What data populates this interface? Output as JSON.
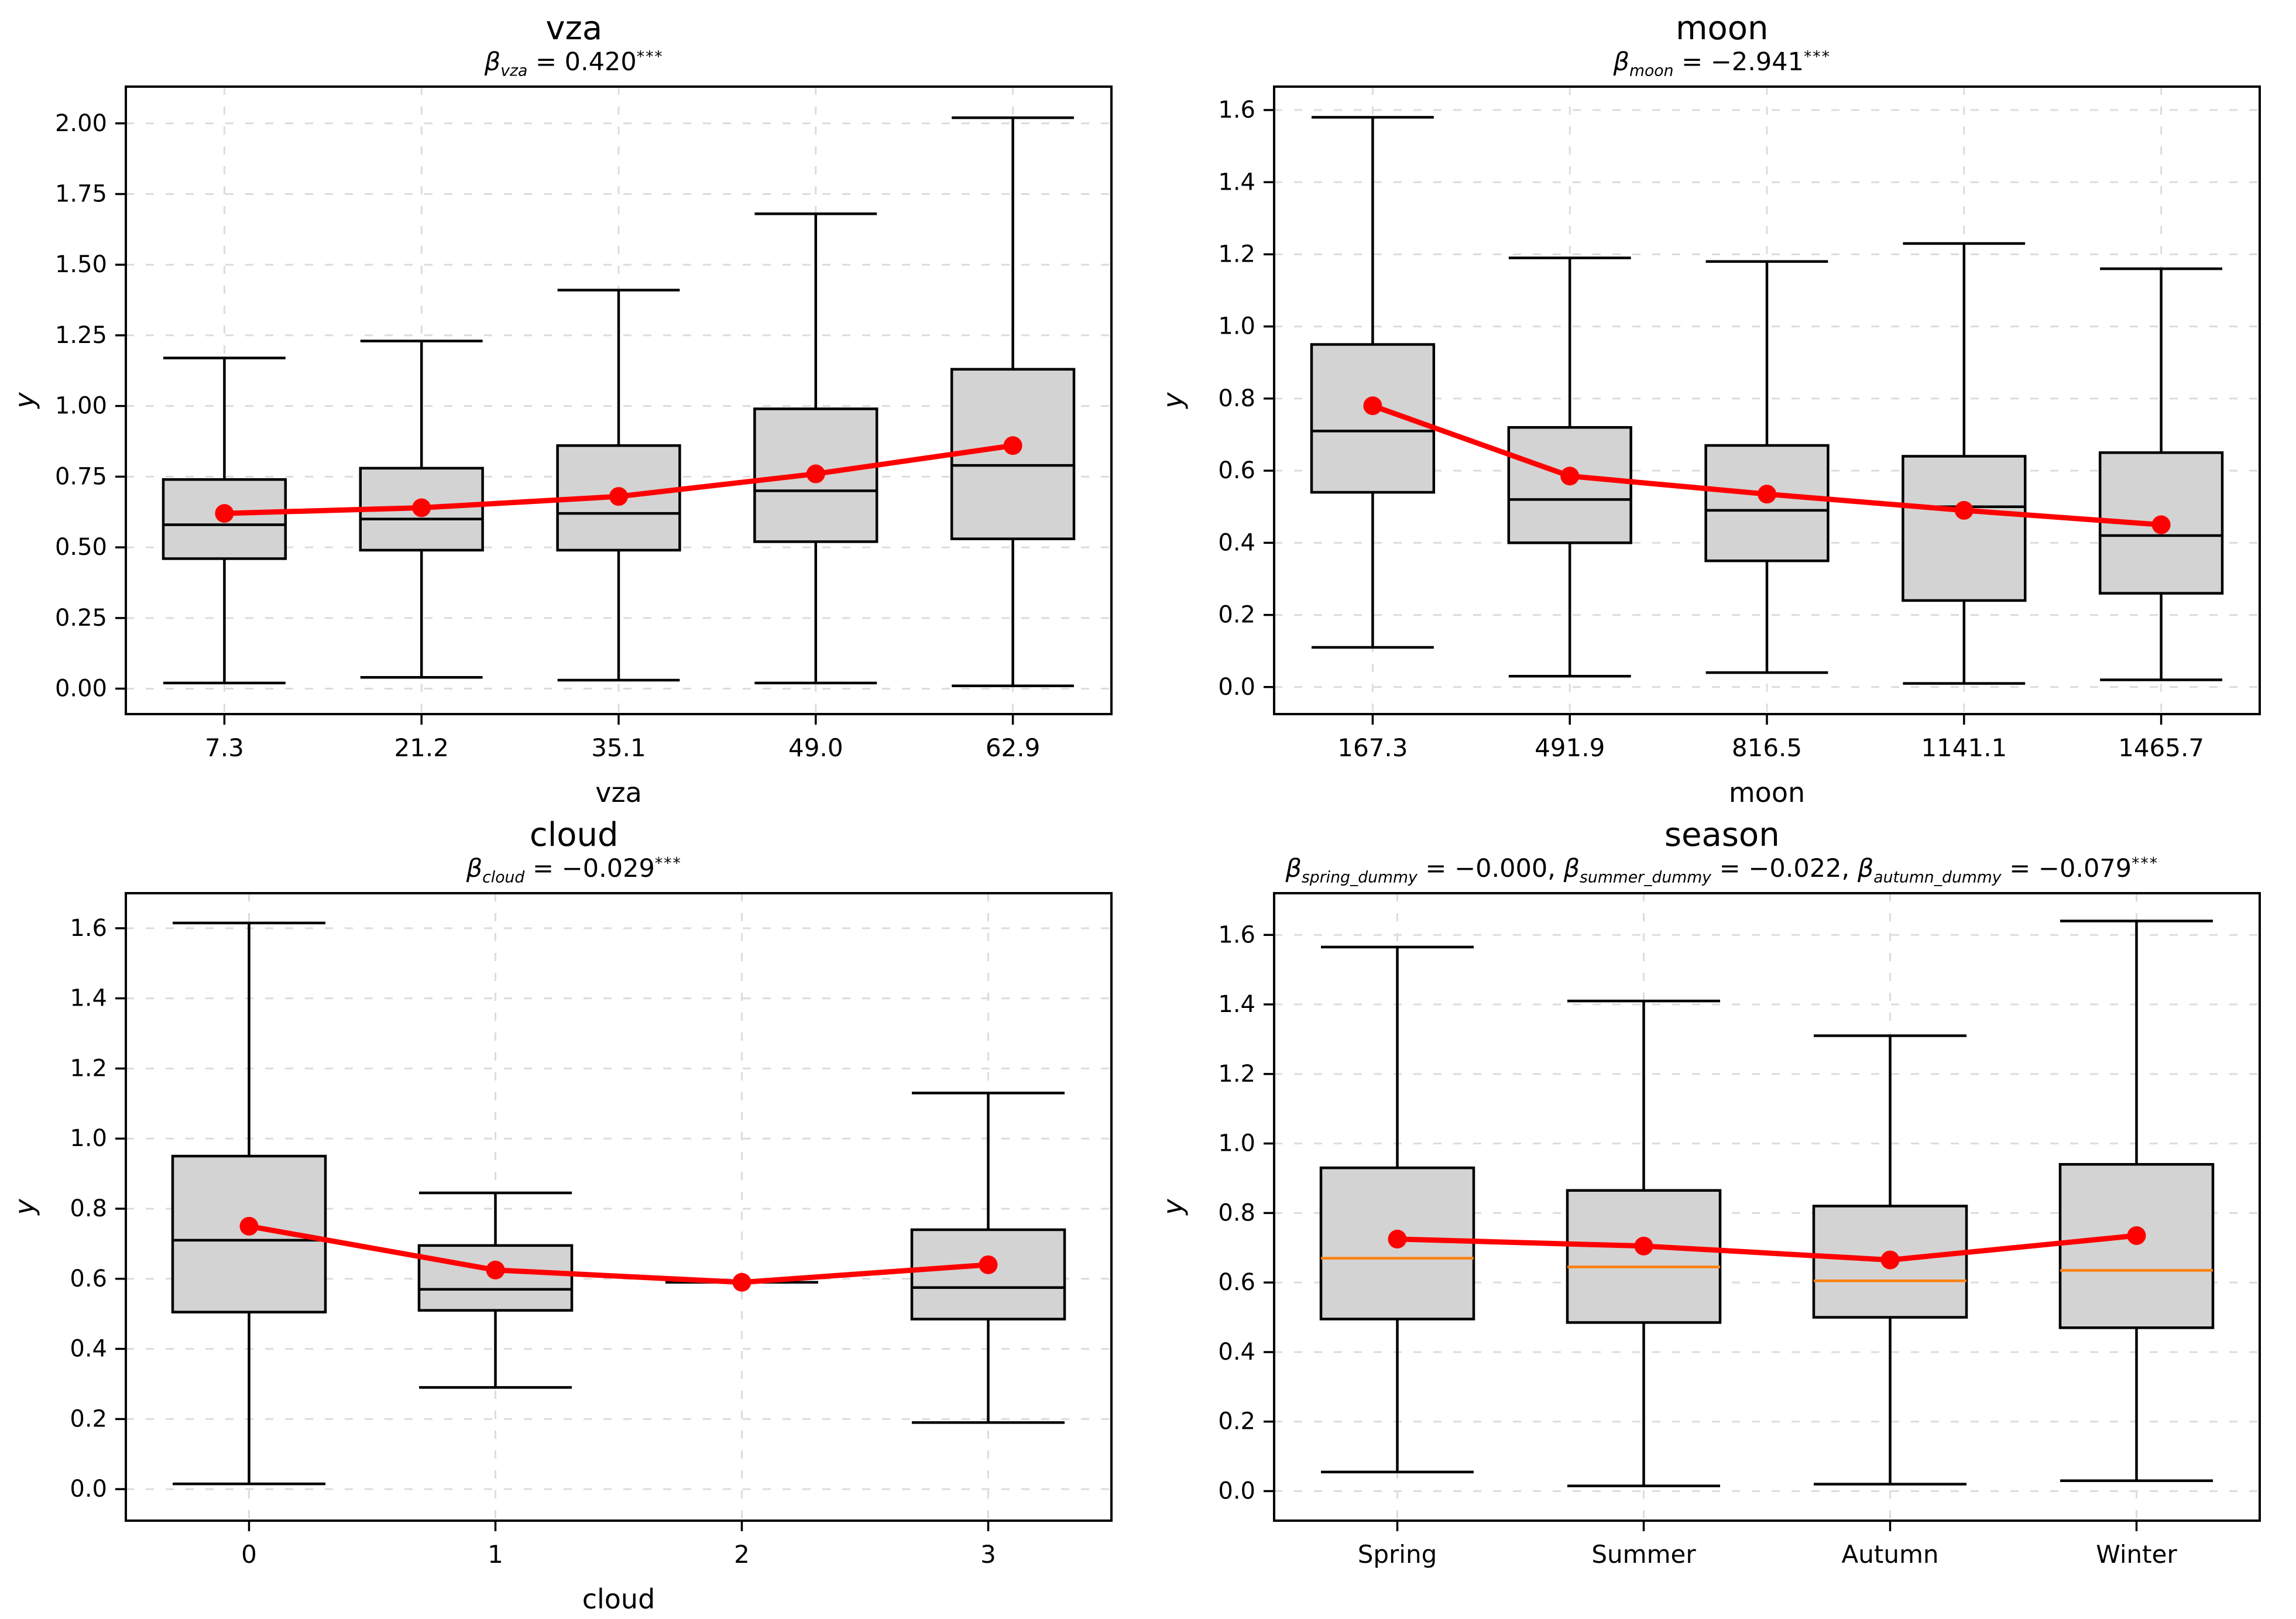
{
  "figure": {
    "background": "#ffffff",
    "rows": 2,
    "cols": 2
  },
  "colors": {
    "box_fill": "#d3d3d3",
    "box_edge": "#000000",
    "whisker": "#000000",
    "mean_line": "#ff0000",
    "grid": "#dcdcdc",
    "median_black": "#000000",
    "median_orange": "#ff7f0e"
  },
  "chart_data": [
    {
      "type": "boxplot",
      "title": "vza",
      "subtitle_text": "β_vza = 0.420***",
      "subtitle_parts": [
        {
          "text": "β",
          "style": "italic"
        },
        {
          "text": "vza",
          "style": "sub"
        },
        {
          "text": " = 0.420",
          "style": "normal"
        },
        {
          "text": "***",
          "style": "sup"
        }
      ],
      "xlabel": "vza",
      "ylabel": "y",
      "categories": [
        "7.3",
        "21.2",
        "35.1",
        "49.0",
        "62.9"
      ],
      "ylim": [
        -0.09,
        2.13
      ],
      "yticks": [
        0.0,
        0.25,
        0.5,
        0.75,
        1.0,
        1.25,
        1.5,
        1.75,
        2.0
      ],
      "ytick_labels": [
        "0.00",
        "0.25",
        "0.50",
        "0.75",
        "1.00",
        "1.25",
        "1.50",
        "1.75",
        "2.00"
      ],
      "median_color": "#000000",
      "grid_on": true,
      "legend": "none",
      "boxes": [
        {
          "whislo": 0.02,
          "q1": 0.46,
          "med": 0.58,
          "q3": 0.74,
          "whishi": 1.17
        },
        {
          "whislo": 0.04,
          "q1": 0.49,
          "med": 0.6,
          "q3": 0.78,
          "whishi": 1.23
        },
        {
          "whislo": 0.03,
          "q1": 0.49,
          "med": 0.62,
          "q3": 0.86,
          "whishi": 1.41
        },
        {
          "whislo": 0.02,
          "q1": 0.52,
          "med": 0.7,
          "q3": 0.99,
          "whishi": 1.68
        },
        {
          "whislo": 0.01,
          "q1": 0.53,
          "med": 0.79,
          "q3": 1.13,
          "whishi": 2.02
        }
      ],
      "means": [
        0.62,
        0.64,
        0.68,
        0.76,
        0.86
      ]
    },
    {
      "type": "boxplot",
      "title": "moon",
      "subtitle_text": "β_moon = −2.941***",
      "subtitle_parts": [
        {
          "text": "β",
          "style": "italic"
        },
        {
          "text": "moon",
          "style": "sub"
        },
        {
          "text": " = −2.941",
          "style": "normal"
        },
        {
          "text": "***",
          "style": "sup"
        }
      ],
      "xlabel": "moon",
      "ylabel": "y",
      "categories": [
        "167.3",
        "491.9",
        "816.5",
        "1141.1",
        "1465.7"
      ],
      "ylim": [
        -0.075,
        1.665
      ],
      "yticks": [
        0.0,
        0.2,
        0.4,
        0.6,
        0.8,
        1.0,
        1.2,
        1.4,
        1.6
      ],
      "ytick_labels": [
        "0.0",
        "0.2",
        "0.4",
        "0.6",
        "0.8",
        "1.0",
        "1.2",
        "1.4",
        "1.6"
      ],
      "median_color": "#000000",
      "grid_on": true,
      "legend": "none",
      "boxes": [
        {
          "whislo": 0.11,
          "q1": 0.54,
          "med": 0.71,
          "q3": 0.95,
          "whishi": 1.58
        },
        {
          "whislo": 0.03,
          "q1": 0.4,
          "med": 0.52,
          "q3": 0.72,
          "whishi": 1.19
        },
        {
          "whislo": 0.04,
          "q1": 0.35,
          "med": 0.49,
          "q3": 0.67,
          "whishi": 1.18
        },
        {
          "whislo": 0.01,
          "q1": 0.24,
          "med": 0.5,
          "q3": 0.64,
          "whishi": 1.23
        },
        {
          "whislo": 0.02,
          "q1": 0.26,
          "med": 0.42,
          "q3": 0.65,
          "whishi": 1.16
        }
      ],
      "means": [
        0.78,
        0.585,
        0.535,
        0.49,
        0.45
      ]
    },
    {
      "type": "boxplot",
      "title": "cloud",
      "subtitle_text": "β_cloud = −0.029***",
      "subtitle_parts": [
        {
          "text": "β",
          "style": "italic"
        },
        {
          "text": "cloud",
          "style": "sub"
        },
        {
          "text": " = −0.029",
          "style": "normal"
        },
        {
          "text": "***",
          "style": "sup"
        }
      ],
      "xlabel": "cloud",
      "ylabel": "y",
      "categories": [
        "0",
        "1",
        "2",
        "3"
      ],
      "ylim": [
        -0.09,
        1.7
      ],
      "yticks": [
        0.0,
        0.2,
        0.4,
        0.6,
        0.8,
        1.0,
        1.2,
        1.4,
        1.6
      ],
      "ytick_labels": [
        "0.0",
        "0.2",
        "0.4",
        "0.6",
        "0.8",
        "1.0",
        "1.2",
        "1.4",
        "1.6"
      ],
      "median_color": "#000000",
      "grid_on": true,
      "legend": "none",
      "boxes": [
        {
          "whislo": 0.015,
          "q1": 0.505,
          "med": 0.71,
          "q3": 0.95,
          "whishi": 1.615
        },
        {
          "whislo": 0.29,
          "q1": 0.51,
          "med": 0.57,
          "q3": 0.695,
          "whishi": 0.845
        },
        {
          "whislo": 0.59,
          "q1": 0.59,
          "med": 0.59,
          "q3": 0.59,
          "whishi": 0.59
        },
        {
          "whislo": 0.19,
          "q1": 0.485,
          "med": 0.575,
          "q3": 0.74,
          "whishi": 1.13
        }
      ],
      "means": [
        0.75,
        0.625,
        0.59,
        0.64
      ]
    },
    {
      "type": "boxplot",
      "title": "season",
      "subtitle_text": "β_spring_dummy = −0.000, β_summer_dummy = −0.022, β_autumn_dummy = −0.079***",
      "subtitle_parts": [
        {
          "text": "β",
          "style": "italic"
        },
        {
          "text": "spring_dummy",
          "style": "sub"
        },
        {
          "text": " = −0.000, ",
          "style": "normal"
        },
        {
          "text": "β",
          "style": "italic"
        },
        {
          "text": "summer_dummy",
          "style": "sub"
        },
        {
          "text": " = −0.022, ",
          "style": "normal"
        },
        {
          "text": "β",
          "style": "italic"
        },
        {
          "text": "autumn_dummy",
          "style": "sub"
        },
        {
          "text": " = −0.079",
          "style": "normal"
        },
        {
          "text": "***",
          "style": "sup"
        }
      ],
      "xlabel": "",
      "ylabel": "y",
      "categories": [
        "Spring",
        "Summer",
        "Autumn",
        "Winter"
      ],
      "ylim": [
        -0.085,
        1.72
      ],
      "yticks": [
        0.0,
        0.2,
        0.4,
        0.6,
        0.8,
        1.0,
        1.2,
        1.4,
        1.6
      ],
      "ytick_labels": [
        "0.0",
        "0.2",
        "0.4",
        "0.6",
        "0.8",
        "1.0",
        "1.2",
        "1.4",
        "1.6"
      ],
      "median_color": "#ff7f0e",
      "grid_on": true,
      "legend": "none",
      "boxes": [
        {
          "whislo": 0.055,
          "q1": 0.495,
          "med": 0.67,
          "q3": 0.93,
          "whishi": 1.565
        },
        {
          "whislo": 0.015,
          "q1": 0.485,
          "med": 0.645,
          "q3": 0.865,
          "whishi": 1.41
        },
        {
          "whislo": 0.02,
          "q1": 0.5,
          "med": 0.605,
          "q3": 0.82,
          "whishi": 1.31
        },
        {
          "whislo": 0.03,
          "q1": 0.47,
          "med": 0.635,
          "q3": 0.94,
          "whishi": 1.64
        }
      ],
      "means": [
        0.725,
        0.705,
        0.665,
        0.735
      ]
    }
  ]
}
